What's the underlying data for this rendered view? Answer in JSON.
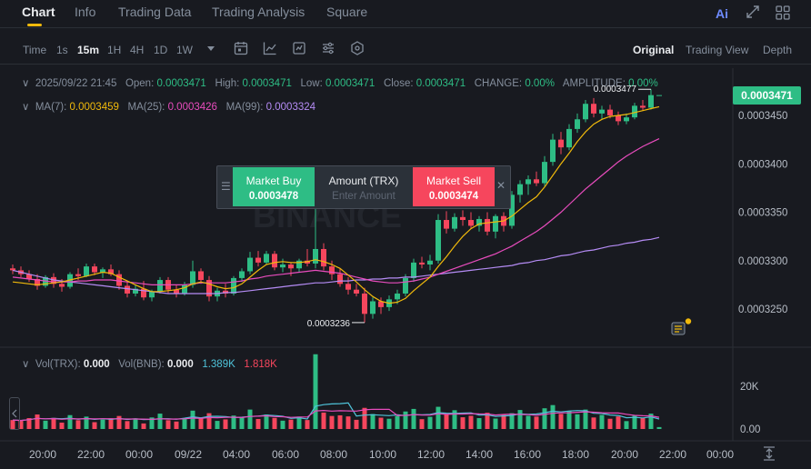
{
  "tabs": [
    "Chart",
    "Info",
    "Trading Data",
    "Trading Analysis",
    "Square"
  ],
  "ai_label": "Ai",
  "toolbar": {
    "time_label": "Time",
    "intervals": [
      "1s",
      "15m",
      "1H",
      "4H",
      "1D",
      "1W"
    ],
    "active_interval": "15m",
    "views": [
      "Original",
      "Trading View",
      "Depth"
    ],
    "active_view": "Original"
  },
  "ohlc": {
    "datetime": "2025/09/22 21:45",
    "open_label": "Open:",
    "open": "0.0003471",
    "high_label": "High:",
    "high": "0.0003471",
    "low_label": "Low:",
    "low": "0.0003471",
    "close_label": "Close:",
    "close": "0.0003471",
    "change_label": "CHANGE:",
    "change": "0.00%",
    "amplitude_label": "AMPLITUDE:",
    "amplitude": "0.00%"
  },
  "ma": {
    "ma7_label": "MA(7):",
    "ma7": "0.0003459",
    "ma25_label": "MA(25):",
    "ma25": "0.0003426",
    "ma99_label": "MA(99):",
    "ma99": "0.0003324"
  },
  "volume_info": {
    "vol_trx_label": "Vol(TRX):",
    "vol_trx": "0.000",
    "vol_bnb_label": "Vol(BNB):",
    "vol_bnb": "0.000",
    "v1": "1.389K",
    "v2": "1.818K"
  },
  "order_panel": {
    "buy_label": "Market Buy",
    "buy_price": "0.0003478",
    "amount_label": "Amount (TRX)",
    "amount_placeholder": "Enter Amount",
    "sell_label": "Market Sell",
    "sell_price": "0.0003474"
  },
  "current_price": "0.0003471",
  "watermark": "BINANCE",
  "colors": {
    "up": "#2ebd85",
    "down": "#f6465d",
    "ma7": "#f0b90b",
    "ma25": "#e84cbd",
    "ma99": "#b58cf5",
    "accent": "#f0b90b",
    "background": "#181a20"
  },
  "chart_data": {
    "type": "candlestick",
    "price_ticks": [
      "0.0003450",
      "0.0003400",
      "0.0003350",
      "0.0003300",
      "0.0003250"
    ],
    "price_tick_values": [
      0.000345,
      0.00034,
      0.000335,
      0.00033,
      0.000325
    ],
    "volume_ticks": [
      "20K",
      "0.00"
    ],
    "volume_tick_values": [
      20000,
      0
    ],
    "time_ticks": [
      "20:00",
      "22:00",
      "00:00",
      "09/22",
      "04:00",
      "06:00",
      "08:00",
      "10:00",
      "12:00",
      "14:00",
      "16:00",
      "18:00",
      "20:00",
      "22:00",
      "00:00"
    ],
    "high_marker": "0.0003477",
    "low_marker": "0.0003236",
    "ylim": [
      0.000321,
      0.000349
    ],
    "candles_ohlc": [
      [
        0.0003292,
        0.0003296,
        0.0003286,
        0.000329
      ],
      [
        0.000329,
        0.0003294,
        0.0003283,
        0.0003286
      ],
      [
        0.0003286,
        0.000329,
        0.0003278,
        0.0003281
      ],
      [
        0.0003281,
        0.0003286,
        0.000327,
        0.0003274
      ],
      [
        0.0003274,
        0.0003285,
        0.0003272,
        0.0003283
      ],
      [
        0.0003283,
        0.0003287,
        0.0003272,
        0.0003276
      ],
      [
        0.0003276,
        0.0003281,
        0.0003268,
        0.0003273
      ],
      [
        0.0003273,
        0.0003288,
        0.0003271,
        0.0003286
      ],
      [
        0.0003286,
        0.0003292,
        0.000328,
        0.0003284
      ],
      [
        0.0003284,
        0.0003297,
        0.0003283,
        0.0003294
      ],
      [
        0.0003294,
        0.0003297,
        0.0003285,
        0.0003288
      ],
      [
        0.0003288,
        0.0003293,
        0.0003282,
        0.0003291
      ],
      [
        0.0003291,
        0.0003296,
        0.0003284,
        0.0003286
      ],
      [
        0.0003286,
        0.000329,
        0.000327,
        0.0003274
      ],
      [
        0.0003274,
        0.0003279,
        0.0003262,
        0.0003266
      ],
      [
        0.0003266,
        0.0003275,
        0.0003263,
        0.0003271
      ],
      [
        0.0003271,
        0.0003279,
        0.0003259,
        0.0003262
      ],
      [
        0.0003262,
        0.000327,
        0.0003258,
        0.0003268
      ],
      [
        0.0003268,
        0.0003283,
        0.0003266,
        0.000328
      ],
      [
        0.000328,
        0.0003283,
        0.0003266,
        0.000327
      ],
      [
        0.000327,
        0.0003275,
        0.0003262,
        0.0003266
      ],
      [
        0.0003266,
        0.0003278,
        0.0003264,
        0.0003275
      ],
      [
        0.0003275,
        0.00033,
        0.0003272,
        0.0003289
      ],
      [
        0.0003289,
        0.0003292,
        0.0003276,
        0.000328
      ],
      [
        0.000328,
        0.0003284,
        0.0003258,
        0.0003263
      ],
      [
        0.0003263,
        0.0003272,
        0.0003258,
        0.0003269
      ],
      [
        0.0003269,
        0.0003276,
        0.0003262,
        0.0003266
      ],
      [
        0.0003266,
        0.0003284,
        0.0003264,
        0.0003282
      ],
      [
        0.0003282,
        0.0003292,
        0.0003278,
        0.0003289
      ],
      [
        0.0003289,
        0.0003309,
        0.0003286,
        0.0003303
      ],
      [
        0.0003303,
        0.000331,
        0.0003294,
        0.0003298
      ],
      [
        0.0003298,
        0.000331,
        0.0003296,
        0.0003307
      ],
      [
        0.0003307,
        0.000331,
        0.000329,
        0.0003293
      ],
      [
        0.0003293,
        0.0003302,
        0.0003288,
        0.0003296
      ],
      [
        0.0003296,
        0.0003298,
        0.0003284,
        0.0003292
      ],
      [
        0.0003292,
        0.0003302,
        0.0003288,
        0.00033
      ],
      [
        0.00033,
        0.0003312,
        0.0003294,
        0.0003297
      ],
      [
        0.0003297,
        0.000336,
        0.0003292,
        0.0003312
      ],
      [
        0.0003312,
        0.0003318,
        0.000329,
        0.0003294
      ],
      [
        0.0003294,
        0.00033,
        0.000328,
        0.0003286
      ],
      [
        0.0003286,
        0.0003292,
        0.0003273,
        0.0003276
      ],
      [
        0.0003276,
        0.0003283,
        0.0003265,
        0.000327
      ],
      [
        0.000327,
        0.0003276,
        0.0003263,
        0.0003266
      ],
      [
        0.0003266,
        0.0003272,
        0.0003236,
        0.0003245
      ],
      [
        0.0003245,
        0.0003262,
        0.000324,
        0.0003258
      ],
      [
        0.0003258,
        0.0003262,
        0.0003245,
        0.0003252
      ],
      [
        0.0003252,
        0.0003264,
        0.0003248,
        0.000326
      ],
      [
        0.000326,
        0.000327,
        0.0003255,
        0.0003266
      ],
      [
        0.0003266,
        0.0003286,
        0.0003263,
        0.0003282
      ],
      [
        0.0003282,
        0.0003302,
        0.0003278,
        0.0003298
      ],
      [
        0.0003298,
        0.0003304,
        0.0003292,
        0.0003296
      ],
      [
        0.0003296,
        0.0003306,
        0.000329,
        0.00033
      ],
      [
        0.00033,
        0.0003348,
        0.0003297,
        0.0003342
      ],
      [
        0.0003342,
        0.0003351,
        0.0003328,
        0.0003333
      ],
      [
        0.0003333,
        0.0003349,
        0.000333,
        0.0003345
      ],
      [
        0.0003345,
        0.0003352,
        0.0003336,
        0.0003342
      ],
      [
        0.0003342,
        0.000335,
        0.0003333,
        0.0003336
      ],
      [
        0.0003336,
        0.0003346,
        0.000333,
        0.0003343
      ],
      [
        0.0003343,
        0.000335,
        0.0003326,
        0.000333
      ],
      [
        0.000333,
        0.0003348,
        0.0003323,
        0.0003346
      ],
      [
        0.0003346,
        0.000335,
        0.000333,
        0.0003336
      ],
      [
        0.0003336,
        0.0003372,
        0.0003333,
        0.0003368
      ],
      [
        0.0003368,
        0.0003383,
        0.000336,
        0.0003379
      ],
      [
        0.0003379,
        0.0003388,
        0.0003368,
        0.0003384
      ],
      [
        0.0003384,
        0.0003392,
        0.0003377,
        0.000338
      ],
      [
        0.000338,
        0.0003408,
        0.0003377,
        0.0003402
      ],
      [
        0.0003402,
        0.0003431,
        0.0003398,
        0.0003425
      ],
      [
        0.0003425,
        0.0003433,
        0.000341,
        0.0003417
      ],
      [
        0.0003417,
        0.0003441,
        0.0003414,
        0.0003436
      ],
      [
        0.0003436,
        0.0003452,
        0.0003432,
        0.0003446
      ],
      [
        0.0003446,
        0.0003466,
        0.0003443,
        0.0003462
      ],
      [
        0.0003462,
        0.0003468,
        0.0003448,
        0.0003452
      ],
      [
        0.0003452,
        0.000346,
        0.0003446,
        0.0003456
      ],
      [
        0.0003456,
        0.0003461,
        0.0003447,
        0.000345
      ],
      [
        0.000345,
        0.0003454,
        0.000344,
        0.0003444
      ],
      [
        0.0003444,
        0.0003452,
        0.0003441,
        0.0003448
      ],
      [
        0.0003448,
        0.0003463,
        0.0003446,
        0.000346
      ],
      [
        0.000346,
        0.0003466,
        0.0003455,
        0.0003458
      ],
      [
        0.0003458,
        0.0003477,
        0.0003456,
        0.0003471
      ],
      [
        0.0003471,
        0.0003471,
        0.0003471,
        0.0003471
      ]
    ],
    "volumes": [
      4200,
      3800,
      5100,
      6800,
      3900,
      5200,
      3000,
      6500,
      4100,
      5800,
      3200,
      4400,
      5000,
      6100,
      3700,
      4800,
      2600,
      5400,
      7200,
      4100,
      3500,
      5100,
      8600,
      4900,
      7400,
      3800,
      4500,
      6300,
      5600,
      9100,
      4700,
      6800,
      5200,
      3900,
      4400,
      5800,
      4200,
      35000,
      7700,
      6100,
      6400,
      5900,
      4300,
      9900,
      7000,
      5300,
      4800,
      6100,
      8200,
      9400,
      4600,
      5700,
      10400,
      6900,
      8800,
      5500,
      6200,
      5100,
      7600,
      4900,
      6800,
      7400,
      8900,
      6200,
      5800,
      9700,
      11200,
      7100,
      8300,
      6900,
      9100,
      5400,
      6600,
      4800,
      5900,
      3700,
      6200,
      5300,
      7200,
      900
    ],
    "ma7": [
      0.0003278,
      0.0003277,
      0.0003276,
      0.0003275,
      0.0003276,
      0.0003277,
      0.0003278,
      0.000328,
      0.0003282,
      0.0003284,
      0.0003286,
      0.0003288,
      0.0003287,
      0.0003283,
      0.0003279,
      0.0003275,
      0.0003271,
      0.0003268,
      0.0003268,
      0.0003269,
      0.000327,
      0.0003272,
      0.0003276,
      0.0003278,
      0.0003276,
      0.0003273,
      0.0003271,
      0.0003272,
      0.0003276,
      0.0003283,
      0.000329,
      0.0003296,
      0.0003298,
      0.0003299,
      0.0003298,
      0.0003298,
      0.0003299,
      0.0003301,
      0.0003299,
      0.0003296,
      0.0003292,
      0.0003285,
      0.0003278,
      0.000327,
      0.0003263,
      0.0003258,
      0.0003256,
      0.0003257,
      0.0003261,
      0.0003269,
      0.0003276,
      0.0003283,
      0.0003294,
      0.0003304,
      0.0003315,
      0.0003325,
      0.0003333,
      0.0003338,
      0.0003339,
      0.000334,
      0.0003341,
      0.0003346,
      0.0003353,
      0.000336,
      0.0003366,
      0.0003376,
      0.0003388,
      0.00034,
      0.0003411,
      0.0003423,
      0.0003433,
      0.0003441,
      0.0003446,
      0.0003449,
      0.000345,
      0.0003451,
      0.0003453,
      0.0003455,
      0.0003457,
      0.0003459
    ],
    "ma25": [
      0.0003283,
      0.0003282,
      0.0003281,
      0.000328,
      0.0003279,
      0.0003278,
      0.0003278,
      0.0003278,
      0.0003279,
      0.0003279,
      0.000328,
      0.000328,
      0.000328,
      0.0003279,
      0.0003278,
      0.0003277,
      0.0003276,
      0.0003275,
      0.0003275,
      0.0003275,
      0.0003275,
      0.0003275,
      0.0003276,
      0.0003277,
      0.0003277,
      0.0003277,
      0.0003277,
      0.0003278,
      0.0003279,
      0.0003281,
      0.0003282,
      0.0003284,
      0.0003285,
      0.0003286,
      0.0003287,
      0.0003288,
      0.0003289,
      0.000329,
      0.0003289,
      0.0003288,
      0.0003287,
      0.0003285,
      0.0003283,
      0.0003281,
      0.0003279,
      0.0003278,
      0.0003277,
      0.0003277,
      0.0003278,
      0.0003279,
      0.0003281,
      0.0003283,
      0.0003286,
      0.0003289,
      0.0003292,
      0.0003295,
      0.0003298,
      0.0003301,
      0.0003304,
      0.0003307,
      0.0003311,
      0.0003315,
      0.000332,
      0.0003325,
      0.000333,
      0.0003336,
      0.0003343,
      0.000335,
      0.0003358,
      0.0003366,
      0.0003374,
      0.0003381,
      0.0003388,
      0.0003395,
      0.0003402,
      0.0003408,
      0.0003413,
      0.0003418,
      0.0003422,
      0.0003426
    ],
    "ma99": [
      0.000329,
      0.0003288,
      0.0003286,
      0.0003284,
      0.0003282,
      0.000328,
      0.0003279,
      0.0003278,
      0.0003277,
      0.0003276,
      0.0003275,
      0.0003274,
      0.0003273,
      0.0003272,
      0.0003271,
      0.000327,
      0.0003269,
      0.0003268,
      0.0003267,
      0.0003266,
      0.0003266,
      0.0003266,
      0.0003266,
      0.0003266,
      0.0003266,
      0.0003266,
      0.0003267,
      0.0003267,
      0.0003268,
      0.0003269,
      0.000327,
      0.0003271,
      0.0003272,
      0.0003273,
      0.0003274,
      0.0003275,
      0.0003276,
      0.0003277,
      0.0003277,
      0.0003278,
      0.0003279,
      0.0003279,
      0.000328,
      0.000328,
      0.0003281,
      0.0003281,
      0.0003282,
      0.0003282,
      0.0003283,
      0.0003283,
      0.0003284,
      0.0003285,
      0.0003286,
      0.0003287,
      0.0003288,
      0.0003289,
      0.000329,
      0.0003291,
      0.0003292,
      0.0003293,
      0.0003294,
      0.0003295,
      0.0003297,
      0.0003298,
      0.00033,
      0.0003301,
      0.0003303,
      0.0003305,
      0.0003306,
      0.0003308,
      0.000331,
      0.0003311,
      0.0003313,
      0.0003315,
      0.0003316,
      0.0003318,
      0.0003319,
      0.0003321,
      0.0003322,
      0.0003324
    ]
  }
}
